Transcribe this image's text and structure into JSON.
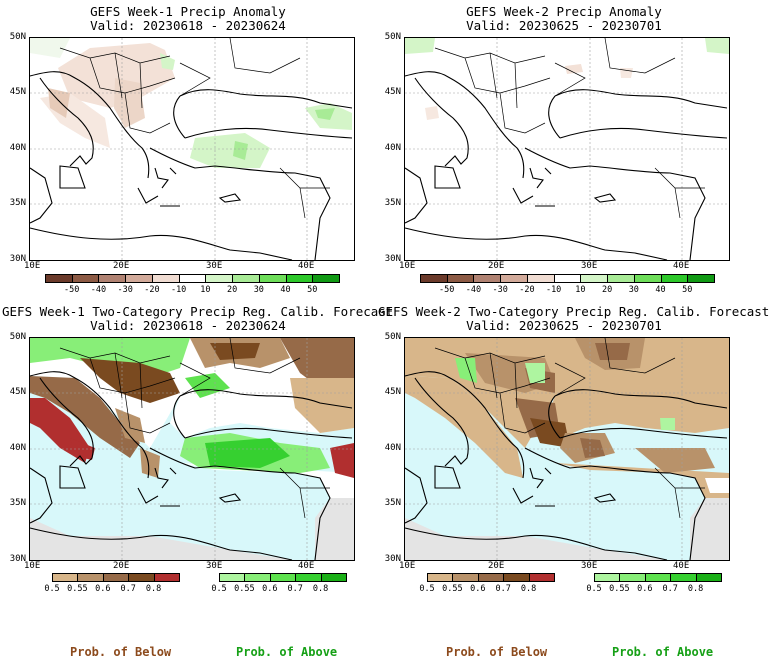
{
  "panels": [
    {
      "title": "GEFS Week-1 Precip Anomaly",
      "valid": "Valid: 20230618 - 20230624"
    },
    {
      "title": "GEFS Week-2 Precip Anomaly",
      "valid": "Valid: 20230625 - 20230701"
    },
    {
      "title": "GEFS Week-1 Two-Category Precip Reg. Calib. Forecast",
      "valid": "Valid: 20230618 - 20230624"
    },
    {
      "title": "GEFS Week-2 Two-Category Precip Reg. Calib. Forecast",
      "valid": "Valid: 20230625 - 20230701"
    }
  ],
  "lat_labels": [
    "50N",
    "45N",
    "40N",
    "35N",
    "30N"
  ],
  "lon_labels": [
    "10E",
    "20E",
    "30E",
    "40E"
  ],
  "anomaly_colorbar": {
    "labels": [
      "-50",
      "-40",
      "-30",
      "-20",
      "-10",
      "10",
      "20",
      "30",
      "40",
      "50"
    ],
    "colors": [
      "#6b3a2a",
      "#8c5a44",
      "#b08272",
      "#d2aa9a",
      "#f0dcd2",
      "#ffffff",
      "#d4f5c8",
      "#a8eb96",
      "#6ede5a",
      "#2dc82a",
      "#119a14"
    ]
  },
  "prob_colorbar": {
    "labels": [
      "0.5",
      "0.55",
      "0.6",
      "0.7",
      "0.8"
    ],
    "below_colors": [
      "#d8b68a",
      "#b8926a",
      "#966a48",
      "#7a4a20",
      "#b12f2f"
    ],
    "above_colors": [
      "#aef5a0",
      "#88ee78",
      "#5ee24e",
      "#36d030",
      "#1ab016"
    ]
  },
  "bottom_labels": {
    "below": "Prob. of Below",
    "above": "Prob. of Above"
  },
  "colors": {
    "below_text": "#8c4a1c",
    "above_text": "#16a016",
    "sea": "#d8f8fa",
    "land": "#ffffff",
    "outside": "#e4e4e4"
  }
}
